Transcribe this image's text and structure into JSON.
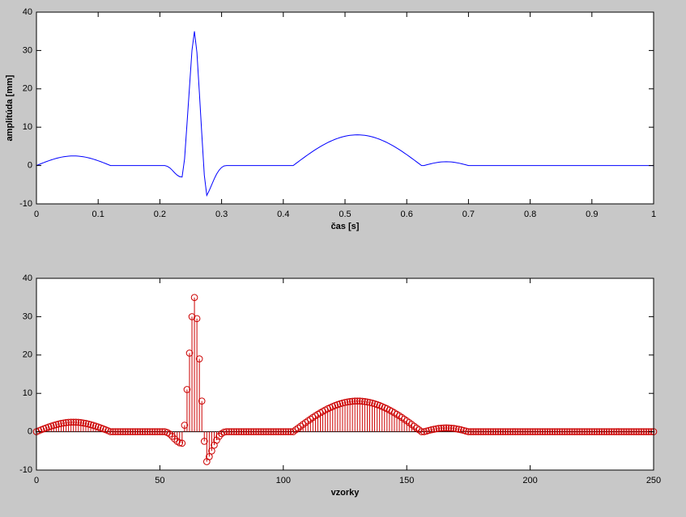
{
  "chart_data": [
    {
      "type": "line",
      "ylabel": "amplitúda [mm]",
      "xlabel": "čas [s]",
      "xlim": [
        0,
        1
      ],
      "ylim": [
        -10,
        40
      ],
      "xticks": [
        0,
        0.1,
        0.2,
        0.3,
        0.4,
        0.5,
        0.6,
        0.7,
        0.8,
        0.9,
        1
      ],
      "yticks": [
        -10,
        0,
        10,
        20,
        30,
        40
      ],
      "x": [
        0,
        0.004,
        0.008,
        0.012,
        0.016,
        0.02,
        0.024,
        0.028,
        0.032,
        0.036,
        0.04,
        0.044,
        0.048,
        0.052,
        0.056,
        0.06,
        0.064,
        0.068,
        0.072,
        0.076,
        0.08,
        0.084,
        0.088,
        0.092,
        0.096,
        0.1,
        0.104,
        0.108,
        0.112,
        0.116,
        0.12,
        0.124,
        0.128,
        0.132,
        0.136,
        0.14,
        0.144,
        0.148,
        0.152,
        0.156,
        0.16,
        0.164,
        0.168,
        0.172,
        0.176,
        0.18,
        0.184,
        0.188,
        0.192,
        0.196,
        0.2,
        0.204,
        0.208,
        0.212,
        0.216,
        0.22,
        0.224,
        0.228,
        0.232,
        0.236,
        0.24,
        0.244,
        0.248,
        0.252,
        0.256,
        0.26,
        0.264,
        0.268,
        0.272,
        0.276,
        0.28,
        0.284,
        0.288,
        0.292,
        0.296,
        0.3,
        0.304,
        0.308,
        0.312,
        0.316,
        0.32,
        0.324,
        0.328,
        0.332,
        0.336,
        0.34,
        0.344,
        0.348,
        0.352,
        0.356,
        0.36,
        0.364,
        0.368,
        0.372,
        0.376,
        0.38,
        0.384,
        0.388,
        0.392,
        0.396,
        0.4,
        0.404,
        0.408,
        0.412,
        0.416,
        0.42,
        0.424,
        0.428,
        0.432,
        0.436,
        0.44,
        0.444,
        0.448,
        0.452,
        0.456,
        0.46,
        0.464,
        0.468,
        0.472,
        0.476,
        0.48,
        0.484,
        0.488,
        0.492,
        0.496,
        0.5,
        0.504,
        0.508,
        0.512,
        0.516,
        0.52,
        0.524,
        0.528,
        0.532,
        0.536,
        0.54,
        0.544,
        0.548,
        0.552,
        0.556,
        0.56,
        0.564,
        0.568,
        0.572,
        0.576,
        0.58,
        0.584,
        0.588,
        0.592,
        0.596,
        0.6,
        0.604,
        0.608,
        0.612,
        0.616,
        0.62,
        0.624,
        0.628,
        0.632,
        0.636,
        0.64,
        0.644,
        0.648,
        0.652,
        0.656,
        0.66,
        0.664,
        0.668,
        0.672,
        0.676,
        0.68,
        0.684,
        0.688,
        0.692,
        0.696,
        0.7,
        0.704,
        0.708,
        0.712,
        0.716,
        0.72,
        0.724,
        0.728,
        0.732,
        0.736,
        0.74,
        0.744,
        0.748,
        0.752,
        0.756,
        0.76,
        0.764,
        0.768,
        0.772,
        0.776,
        0.78,
        0.784,
        0.788,
        0.792,
        0.796,
        0.8,
        0.804,
        0.808,
        0.812,
        0.816,
        0.82,
        0.824,
        0.828,
        0.832,
        0.836,
        0.84,
        0.844,
        0.848,
        0.852,
        0.856,
        0.86,
        0.864,
        0.868,
        0.872,
        0.876,
        0.88,
        0.884,
        0.888,
        0.892,
        0.896,
        0.9,
        0.904,
        0.908,
        0.912,
        0.916,
        0.92,
        0.924,
        0.928,
        0.932,
        0.936,
        0.94,
        0.944,
        0.948,
        0.952,
        0.956,
        0.96,
        0.964,
        0.968,
        0.972,
        0.976,
        0.98,
        0.984,
        0.988,
        0.992,
        0.996,
        1
      ],
      "series": [
        {
          "color": "#0000ff",
          "values": [
            0,
            0.26,
            0.52,
            0.77,
            1.02,
            1.25,
            1.47,
            1.67,
            1.86,
            2.02,
            2.17,
            2.28,
            2.38,
            2.45,
            2.49,
            2.5,
            2.49,
            2.45,
            2.38,
            2.28,
            2.17,
            2.02,
            1.86,
            1.67,
            1.47,
            1.25,
            1.02,
            0.77,
            0.52,
            0.26,
            0,
            0,
            0,
            0,
            0,
            0,
            0,
            0,
            0,
            0,
            0,
            0,
            0,
            0,
            0,
            0,
            0,
            0,
            0,
            0,
            0,
            0,
            0,
            -0.2,
            -0.6,
            -1.2,
            -1.9,
            -2.5,
            -2.9,
            -3,
            1.7,
            11,
            20.5,
            30,
            35,
            29.5,
            19,
            8,
            -2.5,
            -7.8,
            -6.5,
            -5,
            -3.5,
            -2.2,
            -1.2,
            -0.5,
            -0.1,
            0,
            0,
            0,
            0,
            0,
            0,
            0,
            0,
            0,
            0,
            0,
            0,
            0,
            0,
            0,
            0,
            0,
            0,
            0,
            0,
            0,
            0,
            0,
            0,
            0,
            0,
            0,
            0,
            0.48,
            0.96,
            1.44,
            1.91,
            2.38,
            2.84,
            3.28,
            3.72,
            4.14,
            4.54,
            4.93,
            5.3,
            5.66,
            5.99,
            6.3,
            6.58,
            6.85,
            7.08,
            7.3,
            7.48,
            7.64,
            7.77,
            7.87,
            7.94,
            7.99,
            8,
            7.99,
            7.94,
            7.87,
            7.77,
            7.64,
            7.48,
            7.3,
            7.08,
            6.85,
            6.58,
            6.3,
            5.99,
            5.66,
            5.3,
            4.93,
            4.54,
            4.14,
            3.72,
            3.28,
            2.84,
            2.38,
            1.91,
            1.44,
            0.96,
            0.48,
            0,
            0,
            0.17,
            0.34,
            0.5,
            0.64,
            0.77,
            0.87,
            0.94,
            0.98,
            1,
            0.98,
            0.94,
            0.87,
            0.77,
            0.64,
            0.5,
            0.34,
            0.17,
            0,
            0,
            0,
            0,
            0,
            0,
            0,
            0,
            0,
            0,
            0,
            0,
            0,
            0,
            0,
            0,
            0,
            0,
            0,
            0,
            0,
            0,
            0,
            0,
            0,
            0,
            0,
            0,
            0,
            0,
            0,
            0,
            0,
            0,
            0,
            0,
            0,
            0,
            0,
            0,
            0,
            0,
            0,
            0,
            0,
            0,
            0,
            0,
            0,
            0,
            0,
            0,
            0,
            0,
            0,
            0,
            0,
            0,
            0,
            0,
            0,
            0,
            0,
            0,
            0,
            0,
            0,
            0,
            0,
            0,
            0,
            0,
            0,
            0,
            0,
            0
          ]
        }
      ]
    },
    {
      "type": "stem",
      "xlabel": "vzorky",
      "xlim": [
        0,
        250
      ],
      "ylim": [
        -10,
        40
      ],
      "xticks": [
        0,
        50,
        100,
        150,
        200,
        250
      ],
      "yticks": [
        -10,
        0,
        10,
        20,
        30,
        40
      ],
      "x": [
        0,
        1,
        2,
        3,
        4,
        5,
        6,
        7,
        8,
        9,
        10,
        11,
        12,
        13,
        14,
        15,
        16,
        17,
        18,
        19,
        20,
        21,
        22,
        23,
        24,
        25,
        26,
        27,
        28,
        29,
        30,
        31,
        32,
        33,
        34,
        35,
        36,
        37,
        38,
        39,
        40,
        41,
        42,
        43,
        44,
        45,
        46,
        47,
        48,
        49,
        50,
        51,
        52,
        53,
        54,
        55,
        56,
        57,
        58,
        59,
        60,
        61,
        62,
        63,
        64,
        65,
        66,
        67,
        68,
        69,
        70,
        71,
        72,
        73,
        74,
        75,
        76,
        77,
        78,
        79,
        80,
        81,
        82,
        83,
        84,
        85,
        86,
        87,
        88,
        89,
        90,
        91,
        92,
        93,
        94,
        95,
        96,
        97,
        98,
        99,
        100,
        101,
        102,
        103,
        104,
        105,
        106,
        107,
        108,
        109,
        110,
        111,
        112,
        113,
        114,
        115,
        116,
        117,
        118,
        119,
        120,
        121,
        122,
        123,
        124,
        125,
        126,
        127,
        128,
        129,
        130,
        131,
        132,
        133,
        134,
        135,
        136,
        137,
        138,
        139,
        140,
        141,
        142,
        143,
        144,
        145,
        146,
        147,
        148,
        149,
        150,
        151,
        152,
        153,
        154,
        155,
        156,
        157,
        158,
        159,
        160,
        161,
        162,
        163,
        164,
        165,
        166,
        167,
        168,
        169,
        170,
        171,
        172,
        173,
        174,
        175,
        176,
        177,
        178,
        179,
        180,
        181,
        182,
        183,
        184,
        185,
        186,
        187,
        188,
        189,
        190,
        191,
        192,
        193,
        194,
        195,
        196,
        197,
        198,
        199,
        200,
        201,
        202,
        203,
        204,
        205,
        206,
        207,
        208,
        209,
        210,
        211,
        212,
        213,
        214,
        215,
        216,
        217,
        218,
        219,
        220,
        221,
        222,
        223,
        224,
        225,
        226,
        227,
        228,
        229,
        230,
        231,
        232,
        233,
        234,
        235,
        236,
        237,
        238,
        239,
        240,
        241,
        242,
        243,
        244,
        245,
        246,
        247,
        248,
        249,
        250
      ],
      "series": [
        {
          "color": "#cc0000",
          "values": [
            0,
            0.26,
            0.52,
            0.77,
            1.02,
            1.25,
            1.47,
            1.67,
            1.86,
            2.02,
            2.17,
            2.28,
            2.38,
            2.45,
            2.49,
            2.5,
            2.49,
            2.45,
            2.38,
            2.28,
            2.17,
            2.02,
            1.86,
            1.67,
            1.47,
            1.25,
            1.02,
            0.77,
            0.52,
            0.26,
            0,
            0,
            0,
            0,
            0,
            0,
            0,
            0,
            0,
            0,
            0,
            0,
            0,
            0,
            0,
            0,
            0,
            0,
            0,
            0,
            0,
            0,
            0,
            -0.2,
            -0.6,
            -1.2,
            -1.9,
            -2.5,
            -2.9,
            -3,
            1.7,
            11,
            20.5,
            30,
            35,
            29.5,
            19,
            8,
            -2.5,
            -7.8,
            -6.5,
            -5,
            -3.5,
            -2.2,
            -1.2,
            -0.5,
            -0.1,
            0,
            0,
            0,
            0,
            0,
            0,
            0,
            0,
            0,
            0,
            0,
            0,
            0,
            0,
            0,
            0,
            0,
            0,
            0,
            0,
            0,
            0,
            0,
            0,
            0,
            0,
            0,
            0,
            0.48,
            0.96,
            1.44,
            1.91,
            2.38,
            2.84,
            3.28,
            3.72,
            4.14,
            4.54,
            4.93,
            5.3,
            5.66,
            5.99,
            6.3,
            6.58,
            6.85,
            7.08,
            7.3,
            7.48,
            7.64,
            7.77,
            7.87,
            7.94,
            7.99,
            8,
            7.99,
            7.94,
            7.87,
            7.77,
            7.64,
            7.48,
            7.3,
            7.08,
            6.85,
            6.58,
            6.3,
            5.99,
            5.66,
            5.3,
            4.93,
            4.54,
            4.14,
            3.72,
            3.28,
            2.84,
            2.38,
            1.91,
            1.44,
            0.96,
            0.48,
            0,
            0,
            0.17,
            0.34,
            0.5,
            0.64,
            0.77,
            0.87,
            0.94,
            0.98,
            1,
            0.98,
            0.94,
            0.87,
            0.77,
            0.64,
            0.5,
            0.34,
            0.17,
            0,
            0,
            0,
            0,
            0,
            0,
            0,
            0,
            0,
            0,
            0,
            0,
            0,
            0,
            0,
            0,
            0,
            0,
            0,
            0,
            0,
            0,
            0,
            0,
            0,
            0,
            0,
            0,
            0,
            0,
            0,
            0,
            0,
            0,
            0,
            0,
            0,
            0,
            0,
            0,
            0,
            0,
            0,
            0,
            0,
            0,
            0,
            0,
            0,
            0,
            0,
            0,
            0,
            0,
            0,
            0,
            0,
            0,
            0,
            0,
            0,
            0,
            0,
            0,
            0,
            0,
            0,
            0,
            0,
            0,
            0,
            0,
            0,
            0,
            0,
            0
          ]
        }
      ]
    }
  ]
}
